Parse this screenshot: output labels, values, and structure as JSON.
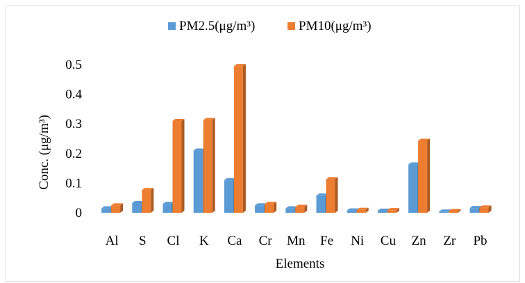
{
  "chart_data": {
    "type": "bar",
    "categories": [
      "Al",
      "S",
      "Cl",
      "K",
      "Ca",
      "Cr",
      "Mn",
      "Fe",
      "Ni",
      "Cu",
      "Zn",
      "Zr",
      "Pb"
    ],
    "series": [
      {
        "name": "PM2.5(μg/m³)",
        "color": "#5b9bd5",
        "values": [
          0.015,
          0.033,
          0.03,
          0.21,
          0.11,
          0.025,
          0.015,
          0.058,
          0.008,
          0.007,
          0.163,
          0.004,
          0.016
        ]
      },
      {
        "name": "PM10(μg/m³)",
        "color": "#ed7d31",
        "values": [
          0.025,
          0.077,
          0.31,
          0.313,
          0.495,
          0.03,
          0.02,
          0.113,
          0.01,
          0.009,
          0.243,
          0.006,
          0.018
        ]
      }
    ],
    "xlabel": "Elements",
    "ylabel": "Conc. (μg/m³)",
    "ylim": [
      0,
      0.5
    ],
    "yticks": [
      "0",
      "0.1",
      "0.2",
      "0.3",
      "0.4",
      "0.5"
    ],
    "grid": false,
    "legend": "top-center",
    "style": "3d-bars"
  }
}
